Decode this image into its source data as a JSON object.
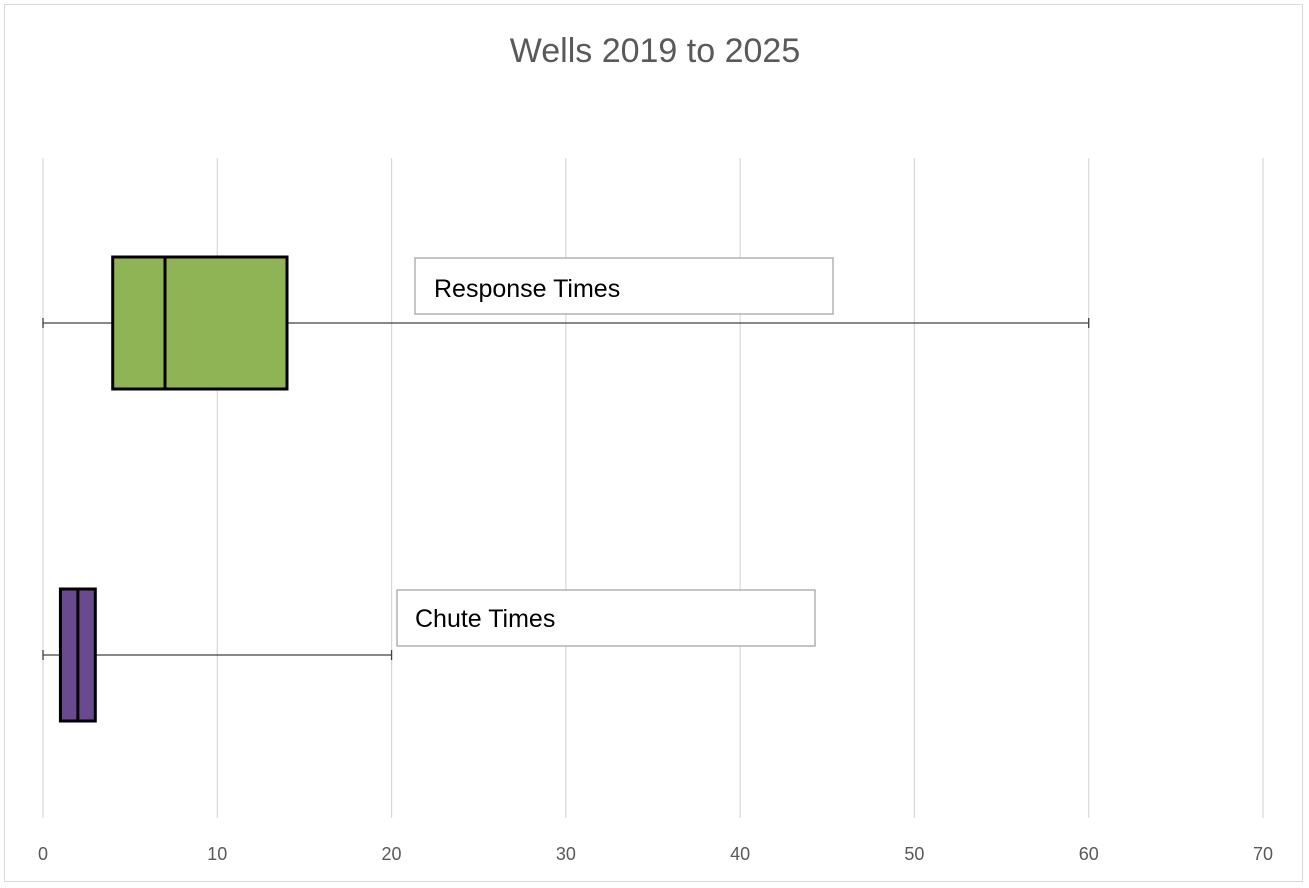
{
  "chart_data": {
    "type": "box",
    "orientation": "horizontal",
    "title": "Wells 2019 to 2025",
    "xlabel": "",
    "ylabel": "",
    "xlim": [
      0,
      70
    ],
    "x_ticks": [
      0,
      10,
      20,
      30,
      40,
      50,
      60,
      70
    ],
    "grid": true,
    "legend": "none",
    "series": [
      {
        "label": "Response Times",
        "min": 0,
        "q1": 4,
        "median": 7,
        "q3": 14,
        "max": 60,
        "color": "#8fb455"
      },
      {
        "label": "Chute Times",
        "min": 0,
        "q1": 1,
        "median": 2,
        "q3": 3,
        "max": 20,
        "color": "#6a4a8e"
      }
    ]
  }
}
